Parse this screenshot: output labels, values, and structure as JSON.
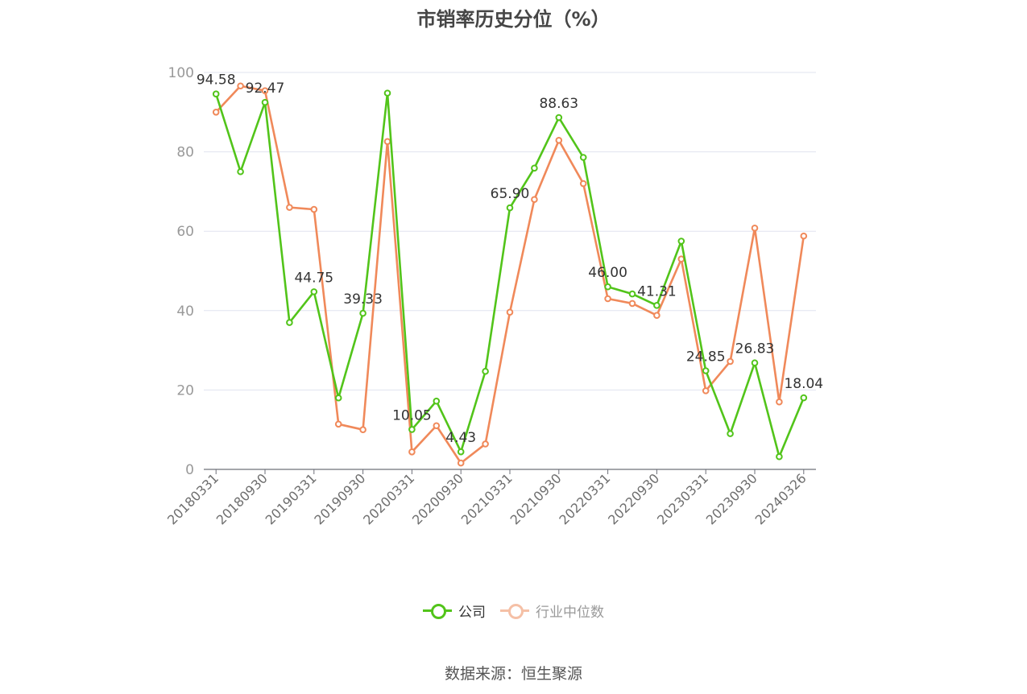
{
  "chart_data": {
    "type": "line",
    "title": "市销率历史分位（%）",
    "ylim": [
      0,
      100
    ],
    "yticks": [
      0,
      20,
      40,
      60,
      80,
      100
    ],
    "x_tick_labels": [
      "20180331",
      "20180930",
      "20190331",
      "20190930",
      "20200331",
      "20200930",
      "20210331",
      "20210930",
      "20220331",
      "20220930",
      "20230331",
      "20230930",
      "20240326"
    ],
    "series": [
      {
        "name": "公司",
        "color": "#52c41a",
        "values": [
          94.58,
          75.0,
          92.47,
          37.0,
          44.75,
          18.0,
          39.33,
          94.8,
          10.05,
          17.2,
          4.43,
          24.7,
          65.9,
          75.9,
          88.63,
          78.6,
          46.0,
          44.2,
          41.31,
          57.5,
          24.85,
          9.0,
          26.83,
          3.2,
          18.04
        ],
        "labels": {
          "0": "94.58",
          "2": "92.47",
          "4": "44.75",
          "6": "39.33",
          "8": "10.05",
          "10": "4.43",
          "12": "65.90",
          "14": "88.63",
          "16": "46.00",
          "18": "41.31",
          "20": "24.85",
          "22": "26.83",
          "24": "18.04"
        }
      },
      {
        "name": "行业中位数",
        "color": "#f0895a",
        "values": [
          90.0,
          96.6,
          95.4,
          66.0,
          65.5,
          11.4,
          10.0,
          82.6,
          4.4,
          11.0,
          1.6,
          6.4,
          39.6,
          68.0,
          82.9,
          72.0,
          43.0,
          41.8,
          38.8,
          53.0,
          19.8,
          27.2,
          60.8,
          17.0,
          58.8
        ]
      }
    ],
    "grid": true,
    "legend_position": "bottom"
  },
  "legend": {
    "company_label": "公司",
    "industry_label": "行业中位数"
  },
  "source_text": "数据来源：恒生聚源"
}
